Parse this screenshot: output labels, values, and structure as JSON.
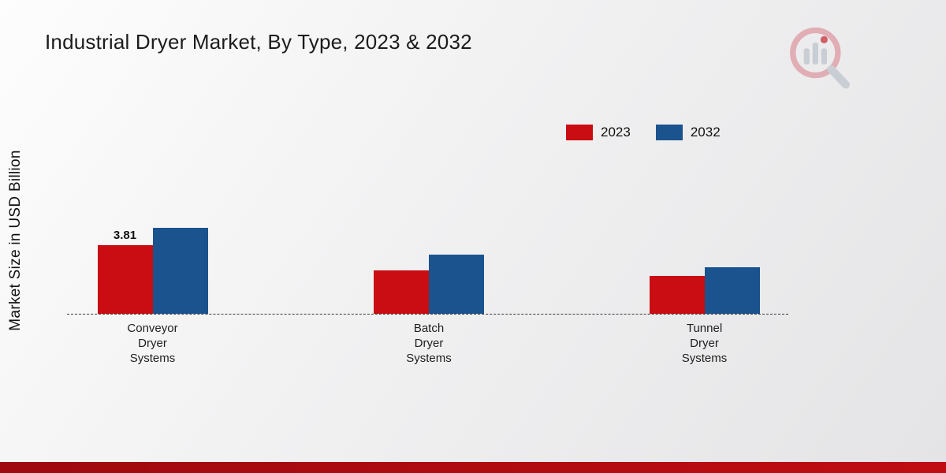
{
  "header": {
    "title": "Industrial Dryer Market, By Type, 2023 & 2032"
  },
  "colors": {
    "series_2023": "#c90d12",
    "series_2032": "#1b538e",
    "footer_bar": "#b20b0f"
  },
  "chart_data": {
    "type": "bar",
    "title": "Industrial Dryer Market, By Type, 2023 & 2032",
    "xlabel": "",
    "ylabel": "Market Size in USD Billion",
    "categories": [
      "Conveyor Dryer Systems",
      "Batch Dryer Systems",
      "Tunnel Dryer Systems"
    ],
    "series": [
      {
        "name": "2023",
        "color": "#c90d12",
        "values": [
          3.81,
          2.4,
          2.1
        ]
      },
      {
        "name": "2032",
        "color": "#1b538e",
        "values": [
          4.8,
          3.3,
          2.6
        ]
      }
    ],
    "data_labels": [
      {
        "series_index": 0,
        "category_index": 0,
        "text": "3.81"
      }
    ],
    "ylim": [
      0,
      5
    ],
    "grid": false,
    "legend_position": "top-right",
    "baseline_style": "dashed"
  }
}
